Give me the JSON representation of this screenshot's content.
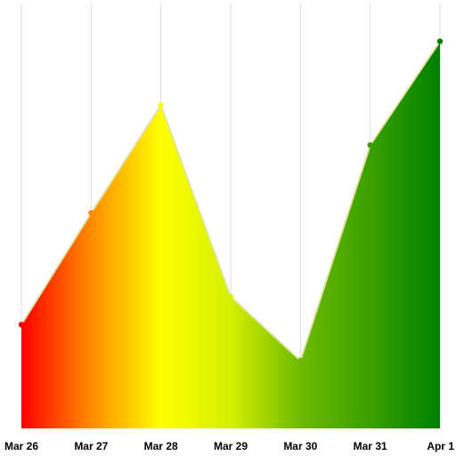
{
  "chart_data": {
    "type": "area",
    "categories": [
      "Mar 26",
      "Mar 27",
      "Mar 28",
      "Mar 29",
      "Mar 30",
      "Mar 31",
      "Apr 1"
    ],
    "series": [
      {
        "values": [
          26,
          54,
          81,
          33,
          17,
          71,
          97
        ]
      }
    ],
    "ylim": [
      0,
      102
    ],
    "grid": {
      "vertical": true,
      "horizontal": false
    },
    "gradient_colors": [
      "#ff0000",
      "#ff8c00",
      "#ffff00",
      "#d4f000",
      "#6dba00",
      "#3aa000",
      "#008000"
    ],
    "line_color": "#e3e3a0"
  }
}
